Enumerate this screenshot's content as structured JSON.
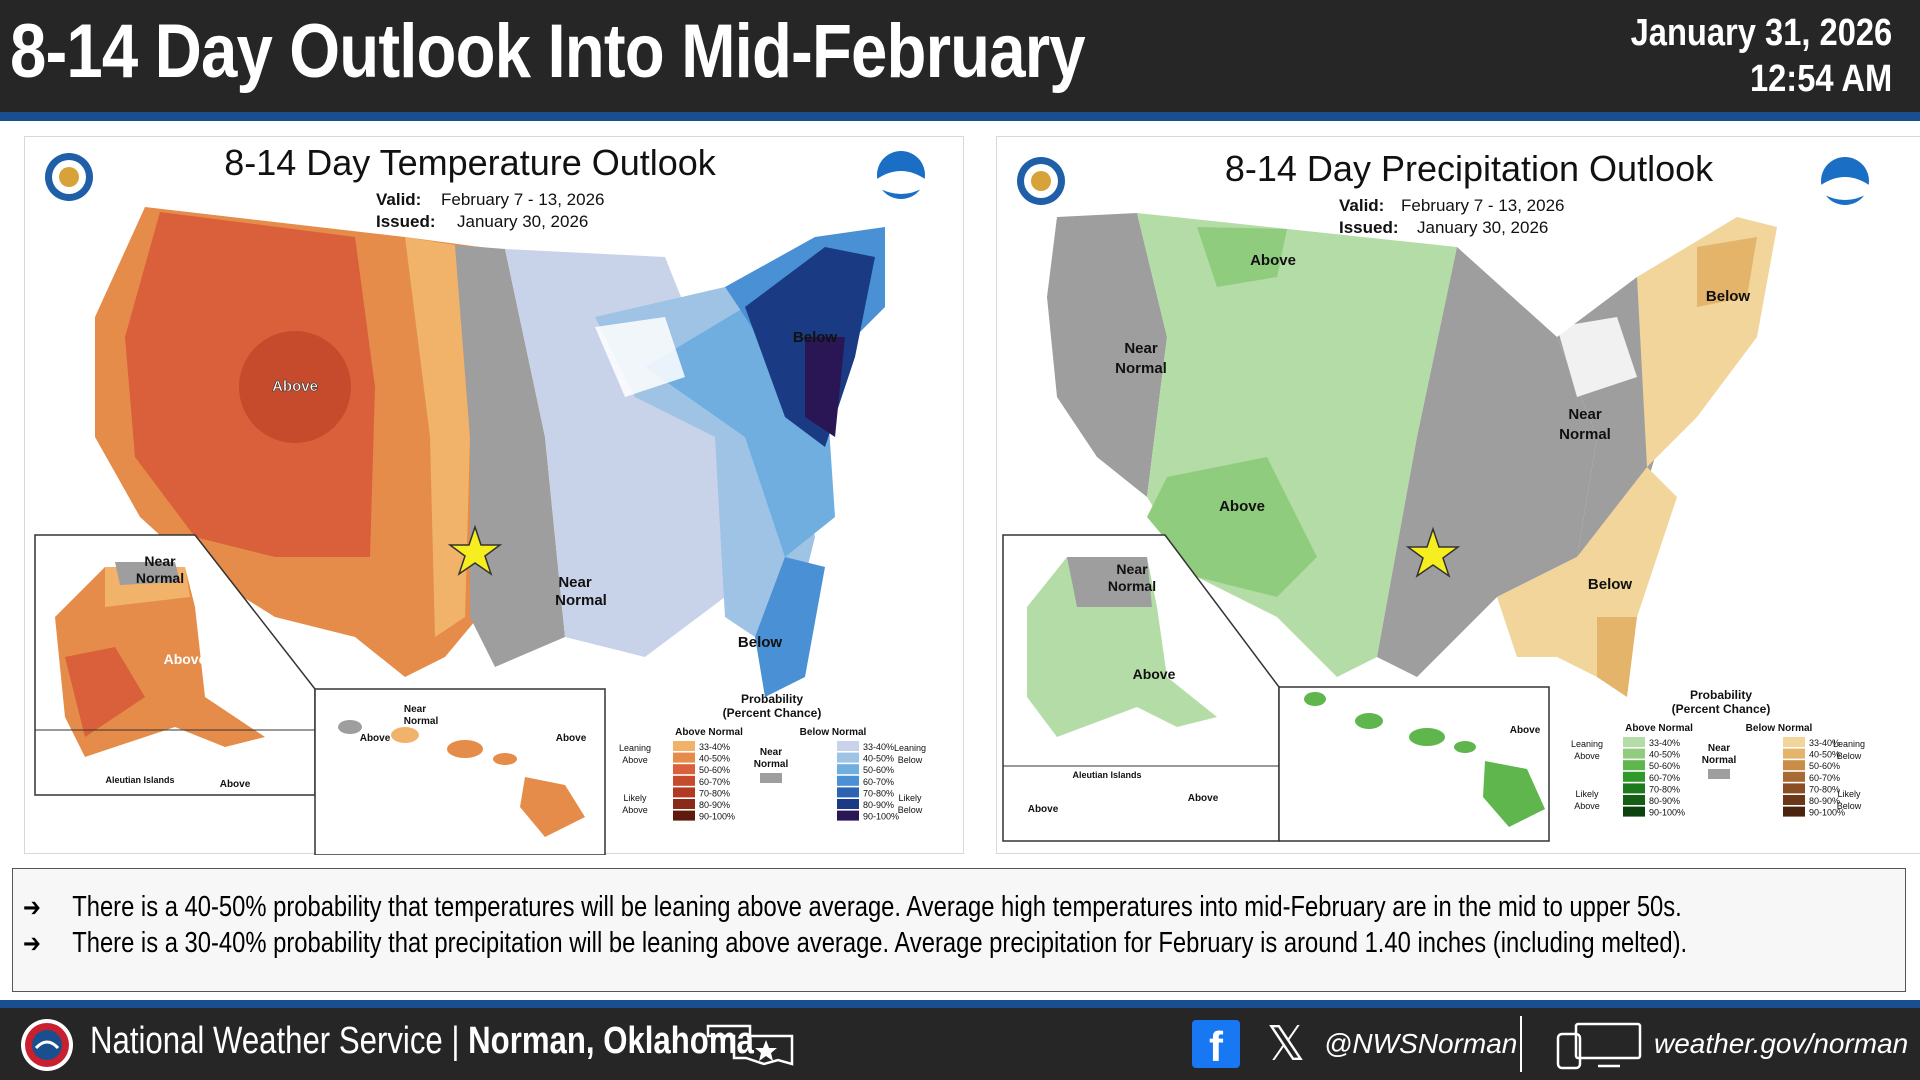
{
  "header": {
    "title": "8-14 Day Outlook Into Mid-February",
    "date": "January 31, 2026",
    "time": "12:54 AM"
  },
  "temperature_map": {
    "title": "8-14 Day Temperature Outlook",
    "valid_label": "Valid:",
    "valid_value": "February 7 - 13, 2026",
    "issued_label": "Issued:",
    "issued_value": "January 30, 2026",
    "region_labels": {
      "above": "Above",
      "below_ne": "Below",
      "below_fl": "Below",
      "near_normal_1": "Near",
      "near_normal_2": "Normal",
      "ak_near_1": "Near",
      "ak_near_2": "Normal",
      "ak_above": "Above",
      "aleutian": "Aleutian Islands",
      "aleutian_above": "Above",
      "hi_near_1": "Near",
      "hi_near_2": "Normal",
      "hi_above_w": "Above",
      "hi_above_e": "Above"
    },
    "legend": {
      "title_1": "Probability",
      "title_2": "(Percent Chance)",
      "above_header": "Above Normal",
      "below_header": "Below Normal",
      "near_1": "Near",
      "near_2": "Normal",
      "leaning_above_1": "Leaning",
      "leaning_above_2": "Above",
      "likely_above_1": "Likely",
      "likely_above_2": "Above",
      "leaning_below_1": "Leaning",
      "leaning_below_2": "Below",
      "likely_below_1": "Likely",
      "likely_below_2": "Below",
      "ranges": [
        "33-40%",
        "40-50%",
        "50-60%",
        "60-70%",
        "70-80%",
        "80-90%",
        "90-100%"
      ],
      "above_colors": [
        "#f1b36a",
        "#e58c4a",
        "#d9603a",
        "#c64a2c",
        "#b23a22",
        "#8a2a18",
        "#5e1a0c"
      ],
      "below_colors": [
        "#c8d3ea",
        "#9fc3e4",
        "#70aee0",
        "#4a90d4",
        "#2a64b2",
        "#1a3b84",
        "#2a1655"
      ],
      "near_color": "#9e9e9e"
    }
  },
  "precipitation_map": {
    "title": "8-14 Day Precipitation Outlook",
    "valid_label": "Valid:",
    "valid_value": "February 7 - 13, 2026",
    "issued_label": "Issued:",
    "issued_value": "January 30, 2026",
    "region_labels": {
      "above_n": "Above",
      "above_sw": "Above",
      "below_ne": "Below",
      "below_fl": "Below",
      "near_w_1": "Near",
      "near_w_2": "Normal",
      "near_e_1": "Near",
      "near_e_2": "Normal",
      "ak_near_1": "Near",
      "ak_near_2": "Normal",
      "ak_above": "Above",
      "aleutian": "Aleutian Islands",
      "aleutian_above_w": "Above",
      "aleutian_above_e": "Above",
      "hi_above": "Above"
    },
    "legend": {
      "title_1": "Probability",
      "title_2": "(Percent Chance)",
      "above_header": "Above Normal",
      "below_header": "Below Normal",
      "near_1": "Near",
      "near_2": "Normal",
      "leaning_above_1": "Leaning",
      "leaning_above_2": "Above",
      "likely_above_1": "Likely",
      "likely_above_2": "Above",
      "leaning_below_1": "Leaning",
      "leaning_below_2": "Below",
      "likely_below_1": "Likely",
      "likely_below_2": "Below",
      "ranges": [
        "33-40%",
        "40-50%",
        "50-60%",
        "60-70%",
        "70-80%",
        "80-90%",
        "90-100%"
      ],
      "above_colors": [
        "#b4dca6",
        "#8fcc7e",
        "#5eb64c",
        "#2f9a2a",
        "#1d7a1c",
        "#155e16",
        "#0c420e"
      ],
      "below_colors": [
        "#f2d59a",
        "#e3b46a",
        "#c98d48",
        "#a86a34",
        "#8a4e24",
        "#6a3818",
        "#4a2410"
      ],
      "near_color": "#9e9e9e"
    }
  },
  "info": {
    "arrow": "➔",
    "bullet_1": "There is a 40-50% probability that temperatures will be leaning above average.  Average high temperatures into mid-February are in the mid to upper 50s.",
    "bullet_2": "There is a 30-40% probability  that precipitation will be leaning above average.  Average precipitation for February is around 1.40 inches (including melted)."
  },
  "footer": {
    "org": "National Weather Service | ",
    "office": "Norman, Oklahoma",
    "facebook_icon": "f",
    "x_icon": "𝕏",
    "handle": "@NWSNorman",
    "website": "weather.gov/norman"
  },
  "colors": {
    "header_bg": "#262626",
    "stripe": "#1a4f8f",
    "star": "#f7ee1f"
  }
}
